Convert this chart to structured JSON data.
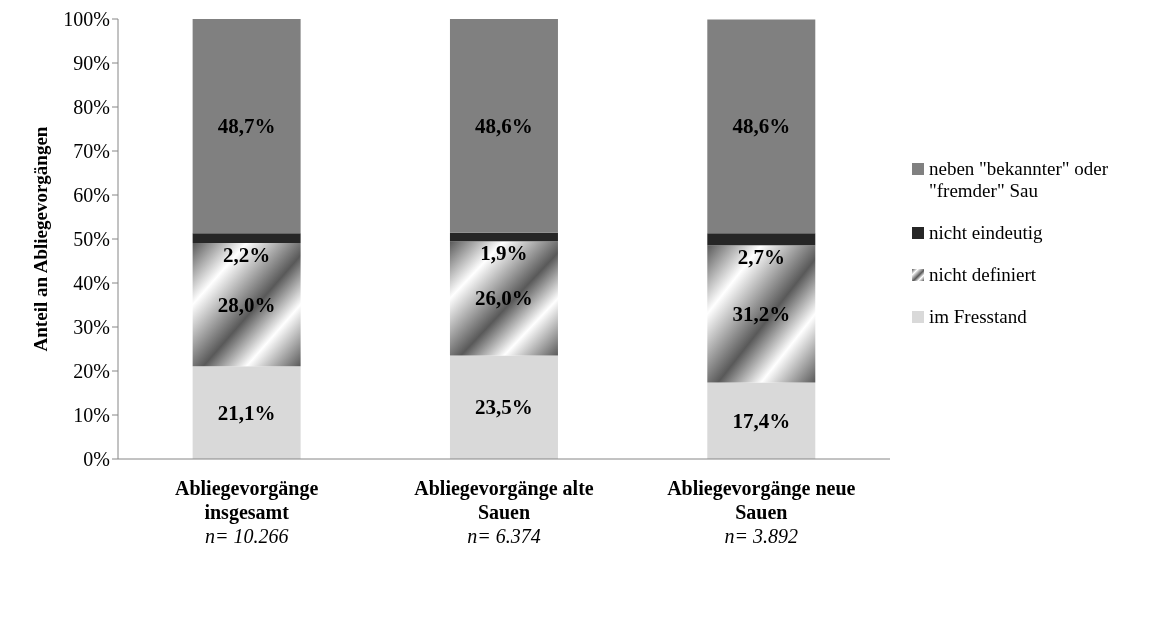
{
  "chart_data": {
    "type": "bar",
    "stacked": true,
    "ylabel": "Anteil an Abliegevorgängen",
    "categories": [
      "Abliegevorgänge insgesamt\nn= 10.266",
      "Abliegevorgänge alte Sauen\nn= 6.374",
      "Abliegevorgänge neue Sauen\nn= 3.892"
    ],
    "series": [
      {
        "name": "im Fresstand",
        "color": "#d9d9d9",
        "values": [
          21.1,
          23.5,
          17.4
        ],
        "value_labels": [
          "21,1%",
          "23,5%",
          "17,4%"
        ]
      },
      {
        "name": "nicht definiert",
        "color": "#595959",
        "values": [
          28.0,
          26.0,
          31.2
        ],
        "value_labels": [
          "28,0%",
          "26,0%",
          "31,2%"
        ]
      },
      {
        "name": "nicht eindeutig",
        "color": "#262626",
        "values": [
          2.2,
          1.9,
          2.7
        ],
        "value_labels": [
          "2,2%",
          "1,9%",
          "2,7%"
        ]
      },
      {
        "name": "neben \"bekannter\" oder \"fremder\" Sau",
        "color": "#808080",
        "values": [
          48.7,
          48.6,
          48.6
        ],
        "value_labels": [
          "48,7%",
          "48,6%",
          "48,6%"
        ]
      }
    ],
    "ylim": [
      0,
      100
    ],
    "yticks": [
      {
        "value": 0,
        "label": "0%"
      },
      {
        "value": 10,
        "label": "10%"
      },
      {
        "value": 20,
        "label": "20%"
      },
      {
        "value": 30,
        "label": "30%"
      },
      {
        "value": 40,
        "label": "40%"
      },
      {
        "value": 50,
        "label": "50%"
      },
      {
        "value": 60,
        "label": "60%"
      },
      {
        "value": 70,
        "label": "70%"
      },
      {
        "value": 80,
        "label": "80%"
      },
      {
        "value": 90,
        "label": "90%"
      },
      {
        "value": 100,
        "label": "100%"
      }
    ],
    "grid": false,
    "legend": "right"
  }
}
